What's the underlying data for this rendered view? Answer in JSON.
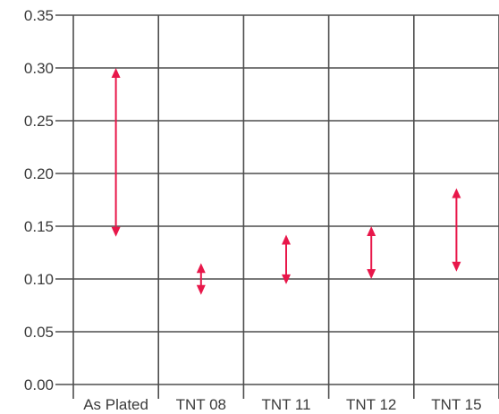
{
  "chart_data": {
    "type": "range",
    "title": "",
    "xlabel": "",
    "ylabel": "",
    "ylim": [
      0,
      0.35
    ],
    "yticks": [
      "0.00",
      "0.05",
      "0.10",
      "0.15",
      "0.20",
      "0.25",
      "0.30",
      "0.35"
    ],
    "ytick_values": [
      0,
      0.05,
      0.1,
      0.15,
      0.2,
      0.25,
      0.3,
      0.35
    ],
    "categories": [
      "As Plated",
      "TNT 08",
      "TNT 11",
      "TNT 12",
      "TNT 15"
    ],
    "ranges": [
      {
        "category": "As Plated",
        "low": 0.14,
        "high": 0.3
      },
      {
        "category": "TNT 08",
        "low": 0.085,
        "high": 0.115
      },
      {
        "category": "TNT 11",
        "low": 0.095,
        "high": 0.142
      },
      {
        "category": "TNT 12",
        "low": 0.1,
        "high": 0.15
      },
      {
        "category": "TNT 15",
        "low": 0.107,
        "high": 0.186
      }
    ],
    "grid": true,
    "legend": "none",
    "colors": {
      "arrow": "#e8174a",
      "grid": "#4d4d4d",
      "text": "#3a3a3a",
      "background": "#ffffff"
    }
  }
}
